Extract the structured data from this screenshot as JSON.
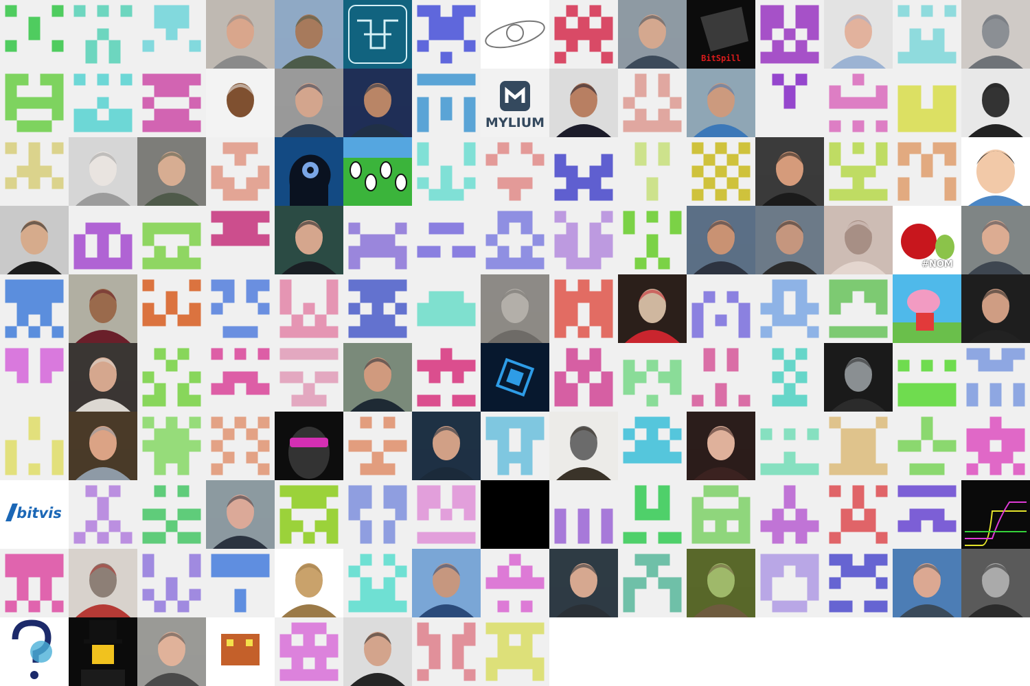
{
  "grid": {
    "columns": 15,
    "avatars": [
      {
        "kind": "identicon",
        "color": "#4fcc5f"
      },
      {
        "kind": "identicon",
        "color": "#6dd6bf"
      },
      {
        "kind": "identicon",
        "color": "#82d9dd"
      },
      {
        "kind": "photo",
        "label": "portrait",
        "bg": "#bfb9b2",
        "skin": "#d9a68c",
        "cloth": "#8a8a8a"
      },
      {
        "kind": "photo",
        "label": "portrait",
        "bg": "#8fa9c5",
        "skin": "#a77a5c",
        "cloth": "#4c5b4a"
      },
      {
        "kind": "logo",
        "label": "circuit",
        "bg": "#11637f",
        "fg": "#d6f1f7"
      },
      {
        "kind": "identicon",
        "color": "#5f67dc"
      },
      {
        "kind": "logo",
        "label": "orbit",
        "bg": "#ffffff",
        "fg": "#777777"
      },
      {
        "kind": "identicon",
        "color": "#d94a66"
      },
      {
        "kind": "photo",
        "label": "portrait",
        "bg": "#8e9aa3",
        "skin": "#d4a88f",
        "cloth": "#3c4a5a"
      },
      {
        "kind": "logo",
        "label": "bitspill",
        "text": "BitSpill",
        "bg": "#0c0c0c",
        "fg": "#d91b1b"
      },
      {
        "kind": "identicon",
        "color": "#a651c8"
      },
      {
        "kind": "photo",
        "label": "portrait",
        "bg": "#e3e3e3",
        "skin": "#e2b29d",
        "cloth": "#9cb3d3"
      },
      {
        "kind": "identicon",
        "color": "#8fdbdd"
      },
      {
        "kind": "photo",
        "label": "cat",
        "bg": "#cfcac6",
        "skin": "#8b8f94",
        "cloth": "#6f7378"
      },
      {
        "kind": "identicon",
        "color": "#7ed35f"
      },
      {
        "kind": "identicon",
        "color": "#6dd7d6"
      },
      {
        "kind": "identicon",
        "color": "#d264b2"
      },
      {
        "kind": "photo",
        "label": "portrait",
        "bg": "#f3f3f3",
        "skin": "#7f5030",
        "cloth": "#f3f3f3"
      },
      {
        "kind": "photo",
        "label": "portrait",
        "bg": "#9a9a9a",
        "skin": "#d3a58d",
        "cloth": "#2a3d55"
      },
      {
        "kind": "photo",
        "label": "portrait",
        "bg": "#1f2f56",
        "skin": "#b98566",
        "cloth": "#203046"
      },
      {
        "kind": "identicon",
        "color": "#5aa4d6"
      },
      {
        "kind": "logo",
        "label": "mylium",
        "text": "MYLIUM",
        "bg": "#f2f2f2",
        "fg": "#34495e"
      },
      {
        "kind": "photo",
        "label": "portrait",
        "bg": "#dcdcdc",
        "skin": "#b87f62",
        "cloth": "#1c1c2a"
      },
      {
        "kind": "identicon",
        "color": "#e0a7a0"
      },
      {
        "kind": "photo",
        "label": "portrait",
        "bg": "#8fa6b5",
        "skin": "#cc9a7e",
        "cloth": "#3c78b8"
      },
      {
        "kind": "identicon",
        "color": "#9546cd"
      },
      {
        "kind": "identicon",
        "color": "#dd7ec4"
      },
      {
        "kind": "identicon",
        "color": "#dce063"
      },
      {
        "kind": "photo",
        "label": "walker",
        "bg": "#e8e8e8",
        "skin": "#333333",
        "cloth": "#222222"
      },
      {
        "kind": "identicon",
        "color": "#dbd38c"
      },
      {
        "kind": "photo",
        "label": "robot",
        "bg": "#d6d6d6",
        "skin": "#e9e4e0",
        "cloth": "#9c9c9c"
      },
      {
        "kind": "photo",
        "label": "portrait",
        "bg": "#7d7d79",
        "skin": "#d7ad92",
        "cloth": "#4f5a4a"
      },
      {
        "kind": "identicon",
        "color": "#e3a595"
      },
      {
        "kind": "logo",
        "label": "head-gears",
        "bg": "#134a83",
        "fg": "#0a1220"
      },
      {
        "kind": "logo",
        "label": "cartoon",
        "bg": "#3bb43b",
        "fg": "#111111"
      },
      {
        "kind": "identicon",
        "color": "#80e0d6"
      },
      {
        "kind": "identicon",
        "color": "#e39a98"
      },
      {
        "kind": "identicon",
        "color": "#5f5fd0"
      },
      {
        "kind": "identicon",
        "color": "#cde28c"
      },
      {
        "kind": "identicon",
        "color": "#cfc23c"
      },
      {
        "kind": "photo",
        "label": "portrait",
        "bg": "#3b3b3b",
        "skin": "#d59b7b",
        "cloth": "#1b1b1b"
      },
      {
        "kind": "identicon",
        "color": "#bfdc63"
      },
      {
        "kind": "identicon",
        "color": "#e2aa80"
      },
      {
        "kind": "logo",
        "label": "cartoon-face",
        "bg": "#ffffff",
        "fg": "#3b3b3b"
      },
      {
        "kind": "photo",
        "label": "portrait",
        "bg": "#c9c9c9",
        "skin": "#d6ab8c",
        "cloth": "#1d1d1d"
      },
      {
        "kind": "identicon",
        "color": "#b063d4"
      },
      {
        "kind": "identicon",
        "color": "#8fd662"
      },
      {
        "kind": "identicon",
        "color": "#cc4e8d"
      },
      {
        "kind": "photo",
        "label": "portrait",
        "bg": "#2b4b44",
        "skin": "#d5a68d",
        "cloth": "#1a1f24"
      },
      {
        "kind": "identicon",
        "color": "#9a86dc"
      },
      {
        "kind": "identicon",
        "color": "#8a7fe0"
      },
      {
        "kind": "identicon",
        "color": "#8f8fe2"
      },
      {
        "kind": "identicon",
        "color": "#bd9ae0"
      },
      {
        "kind": "identicon",
        "color": "#7bd246"
      },
      {
        "kind": "photo",
        "label": "portrait",
        "bg": "#5b6f86",
        "skin": "#c99273",
        "cloth": "#2d3340"
      },
      {
        "kind": "photo",
        "label": "portrait",
        "bg": "#6c7a88",
        "skin": "#c5967e",
        "cloth": "#2b2b2b"
      },
      {
        "kind": "photo",
        "label": "blur",
        "bg": "#cdbcb4",
        "skin": "#a78f85",
        "cloth": "#e4d6cf"
      },
      {
        "kind": "logo",
        "label": "apple",
        "text": "#NOM",
        "bg": "#ffffff",
        "fg": "#c8161d"
      },
      {
        "kind": "photo",
        "label": "portrait",
        "bg": "#7f8585",
        "skin": "#dcac92",
        "cloth": "#3e4650"
      },
      {
        "kind": "identicon",
        "color": "#5b8edd"
      },
      {
        "kind": "photo",
        "label": "portrait",
        "bg": "#b1afa2",
        "skin": "#9a6a4c",
        "cloth": "#6a1f2a"
      },
      {
        "kind": "identicon",
        "color": "#db733f"
      },
      {
        "kind": "identicon",
        "color": "#6a8fe0"
      },
      {
        "kind": "identicon",
        "color": "#e595b3"
      },
      {
        "kind": "identicon",
        "color": "#6372cf"
      },
      {
        "kind": "identicon",
        "color": "#7fe0cf"
      },
      {
        "kind": "photo",
        "label": "stones",
        "bg": "#8d8a86",
        "skin": "#b3afa9",
        "cloth": "#6e6b67"
      },
      {
        "kind": "identicon",
        "color": "#e26c63"
      },
      {
        "kind": "photo",
        "label": "food",
        "bg": "#2b1f1a",
        "skin": "#cfb79f",
        "cloth": "#c9252e"
      },
      {
        "kind": "identicon",
        "color": "#8b81e0"
      },
      {
        "kind": "identicon",
        "color": "#8eb3e6"
      },
      {
        "kind": "identicon",
        "color": "#7dca72"
      },
      {
        "kind": "logo",
        "label": "pig",
        "bg": "#4fb9ea",
        "fg": "#f29bc2"
      },
      {
        "kind": "photo",
        "label": "portrait",
        "bg": "#1e1e1e",
        "skin": "#cf9d83",
        "cloth": "#222222"
      },
      {
        "kind": "identicon",
        "color": "#d979dd"
      },
      {
        "kind": "photo",
        "label": "portrait-cat",
        "bg": "#3a3633",
        "skin": "#d5a78e",
        "cloth": "#dcd8d2"
      },
      {
        "kind": "identicon",
        "color": "#88d65b"
      },
      {
        "kind": "identicon",
        "color": "#dd5ea6"
      },
      {
        "kind": "identicon",
        "color": "#e3a8c0"
      },
      {
        "kind": "photo",
        "label": "portrait",
        "bg": "#7a8a7a",
        "skin": "#d09a7e",
        "cloth": "#1e2a34"
      },
      {
        "kind": "identicon",
        "color": "#db4e8e"
      },
      {
        "kind": "logo",
        "label": "chip",
        "bg": "#07182e",
        "fg": "#2e9ce6"
      },
      {
        "kind": "identicon",
        "color": "#d65fa3"
      },
      {
        "kind": "identicon",
        "color": "#8adc98"
      },
      {
        "kind": "identicon",
        "color": "#da6ea6"
      },
      {
        "kind": "identicon",
        "color": "#66d6c9"
      },
      {
        "kind": "photo",
        "label": "alien",
        "bg": "#1a1a1a",
        "skin": "#8a8f92",
        "cloth": "#2b2b2b"
      },
      {
        "kind": "identicon",
        "color": "#6fdc4f"
      },
      {
        "kind": "identicon",
        "color": "#8ea7e2"
      },
      {
        "kind": "identicon",
        "color": "#e2e07c"
      },
      {
        "kind": "photo",
        "label": "portrait",
        "bg": "#4a3a28",
        "skin": "#dba385",
        "cloth": "#8e9aa6"
      },
      {
        "kind": "identicon",
        "color": "#96dc7a"
      },
      {
        "kind": "identicon",
        "color": "#e3a285"
      },
      {
        "kind": "logo",
        "label": "alien-shades",
        "bg": "#0d0d0d",
        "fg": "#d42fb3"
      },
      {
        "kind": "identicon",
        "color": "#e29d7e"
      },
      {
        "kind": "photo",
        "label": "portrait",
        "bg": "#1e3144",
        "skin": "#d1a086",
        "cloth": "#1b2a3a"
      },
      {
        "kind": "identicon",
        "color": "#7fc7e0"
      },
      {
        "kind": "photo",
        "label": "warrior",
        "bg": "#ecebe8",
        "skin": "#6b6b6b",
        "cloth": "#3a3329"
      },
      {
        "kind": "identicon",
        "color": "#55c6dc"
      },
      {
        "kind": "photo",
        "label": "portrait",
        "bg": "#2b1d1b",
        "skin": "#dfb19b",
        "cloth": "#3b2220"
      },
      {
        "kind": "identicon",
        "color": "#86e0c0"
      },
      {
        "kind": "identicon",
        "color": "#dfc38c"
      },
      {
        "kind": "identicon",
        "color": "#8bd86f"
      },
      {
        "kind": "identicon",
        "color": "#e068c7"
      },
      {
        "kind": "logo",
        "label": "bitvis",
        "text": "bitvis",
        "bg": "#ffffff",
        "fg": "#1b67b6"
      },
      {
        "kind": "identicon",
        "color": "#bb8fe0"
      },
      {
        "kind": "identicon",
        "color": "#5fcc7a"
      },
      {
        "kind": "photo",
        "label": "portrait",
        "bg": "#8c9aa0",
        "skin": "#dba998",
        "cloth": "#2b3340"
      },
      {
        "kind": "identicon",
        "color": "#9bd23a"
      },
      {
        "kind": "identicon",
        "color": "#8f9ee0"
      },
      {
        "kind": "identicon",
        "color": "#e29fdb"
      },
      {
        "kind": "logo",
        "label": "black",
        "bg": "#000000",
        "fg": "#000000"
      },
      {
        "kind": "identicon",
        "color": "#a779d9"
      },
      {
        "kind": "identicon",
        "color": "#4fd06a"
      },
      {
        "kind": "identicon",
        "color": "#8fd67c"
      },
      {
        "kind": "identicon",
        "color": "#c074d6"
      },
      {
        "kind": "identicon",
        "color": "#e06468"
      },
      {
        "kind": "identicon",
        "color": "#7c5fd6"
      },
      {
        "kind": "logo",
        "label": "scope",
        "bg": "#0a0a0a",
        "fg": "#e5e52b"
      },
      {
        "kind": "identicon",
        "color": "#e064ae"
      },
      {
        "kind": "photo",
        "label": "statue",
        "bg": "#d8d2cc",
        "skin": "#8d7f76",
        "cloth": "#b53a35"
      },
      {
        "kind": "identicon",
        "color": "#a08ae0"
      },
      {
        "kind": "identicon",
        "color": "#5f8ee0"
      },
      {
        "kind": "photo",
        "label": "fish",
        "bg": "#ffffff",
        "skin": "#c9a26b",
        "cloth": "#9b7a48"
      },
      {
        "kind": "identicon",
        "color": "#6fe0d3"
      },
      {
        "kind": "photo",
        "label": "portrait",
        "bg": "#7aa6d6",
        "skin": "#c6977f",
        "cloth": "#2a4a7a"
      },
      {
        "kind": "identicon",
        "color": "#dd7ad6"
      },
      {
        "kind": "photo",
        "label": "portrait",
        "bg": "#2e3b44",
        "skin": "#d6a890",
        "cloth": "#2a3036"
      },
      {
        "kind": "identicon",
        "color": "#6fc0a8"
      },
      {
        "kind": "photo",
        "label": "mantis",
        "bg": "#59682a",
        "skin": "#9fb96a",
        "cloth": "#6e5b3e"
      },
      {
        "kind": "identicon",
        "color": "#b9a7e6"
      },
      {
        "kind": "identicon",
        "color": "#6664d2"
      },
      {
        "kind": "photo",
        "label": "portrait",
        "bg": "#4c7db5",
        "skin": "#dba892",
        "cloth": "#3a4a5a"
      },
      {
        "kind": "photo",
        "label": "portrait",
        "bg": "#5a5a5a",
        "skin": "#aaaaaa",
        "cloth": "#2b2b2b"
      },
      {
        "kind": "logo",
        "label": "puzzle",
        "bg": "#ffffff",
        "fg": "#1c2a6a"
      },
      {
        "kind": "logo",
        "label": "lego",
        "bg": "#0b0b0b",
        "fg": "#f1c21e"
      },
      {
        "kind": "photo",
        "label": "portrait",
        "bg": "#9a9a96",
        "skin": "#e0b29a",
        "cloth": "#4a4a4a"
      },
      {
        "kind": "logo",
        "label": "sprite",
        "bg": "#ffffff",
        "fg": "#c4602a"
      },
      {
        "kind": "identicon",
        "color": "#dc82dc"
      },
      {
        "kind": "photo",
        "label": "portrait",
        "bg": "#dcdcdc",
        "skin": "#d3a48c",
        "cloth": "#252525"
      },
      {
        "kind": "identicon",
        "color": "#e1909a"
      },
      {
        "kind": "identicon",
        "color": "#dde079"
      }
    ]
  }
}
